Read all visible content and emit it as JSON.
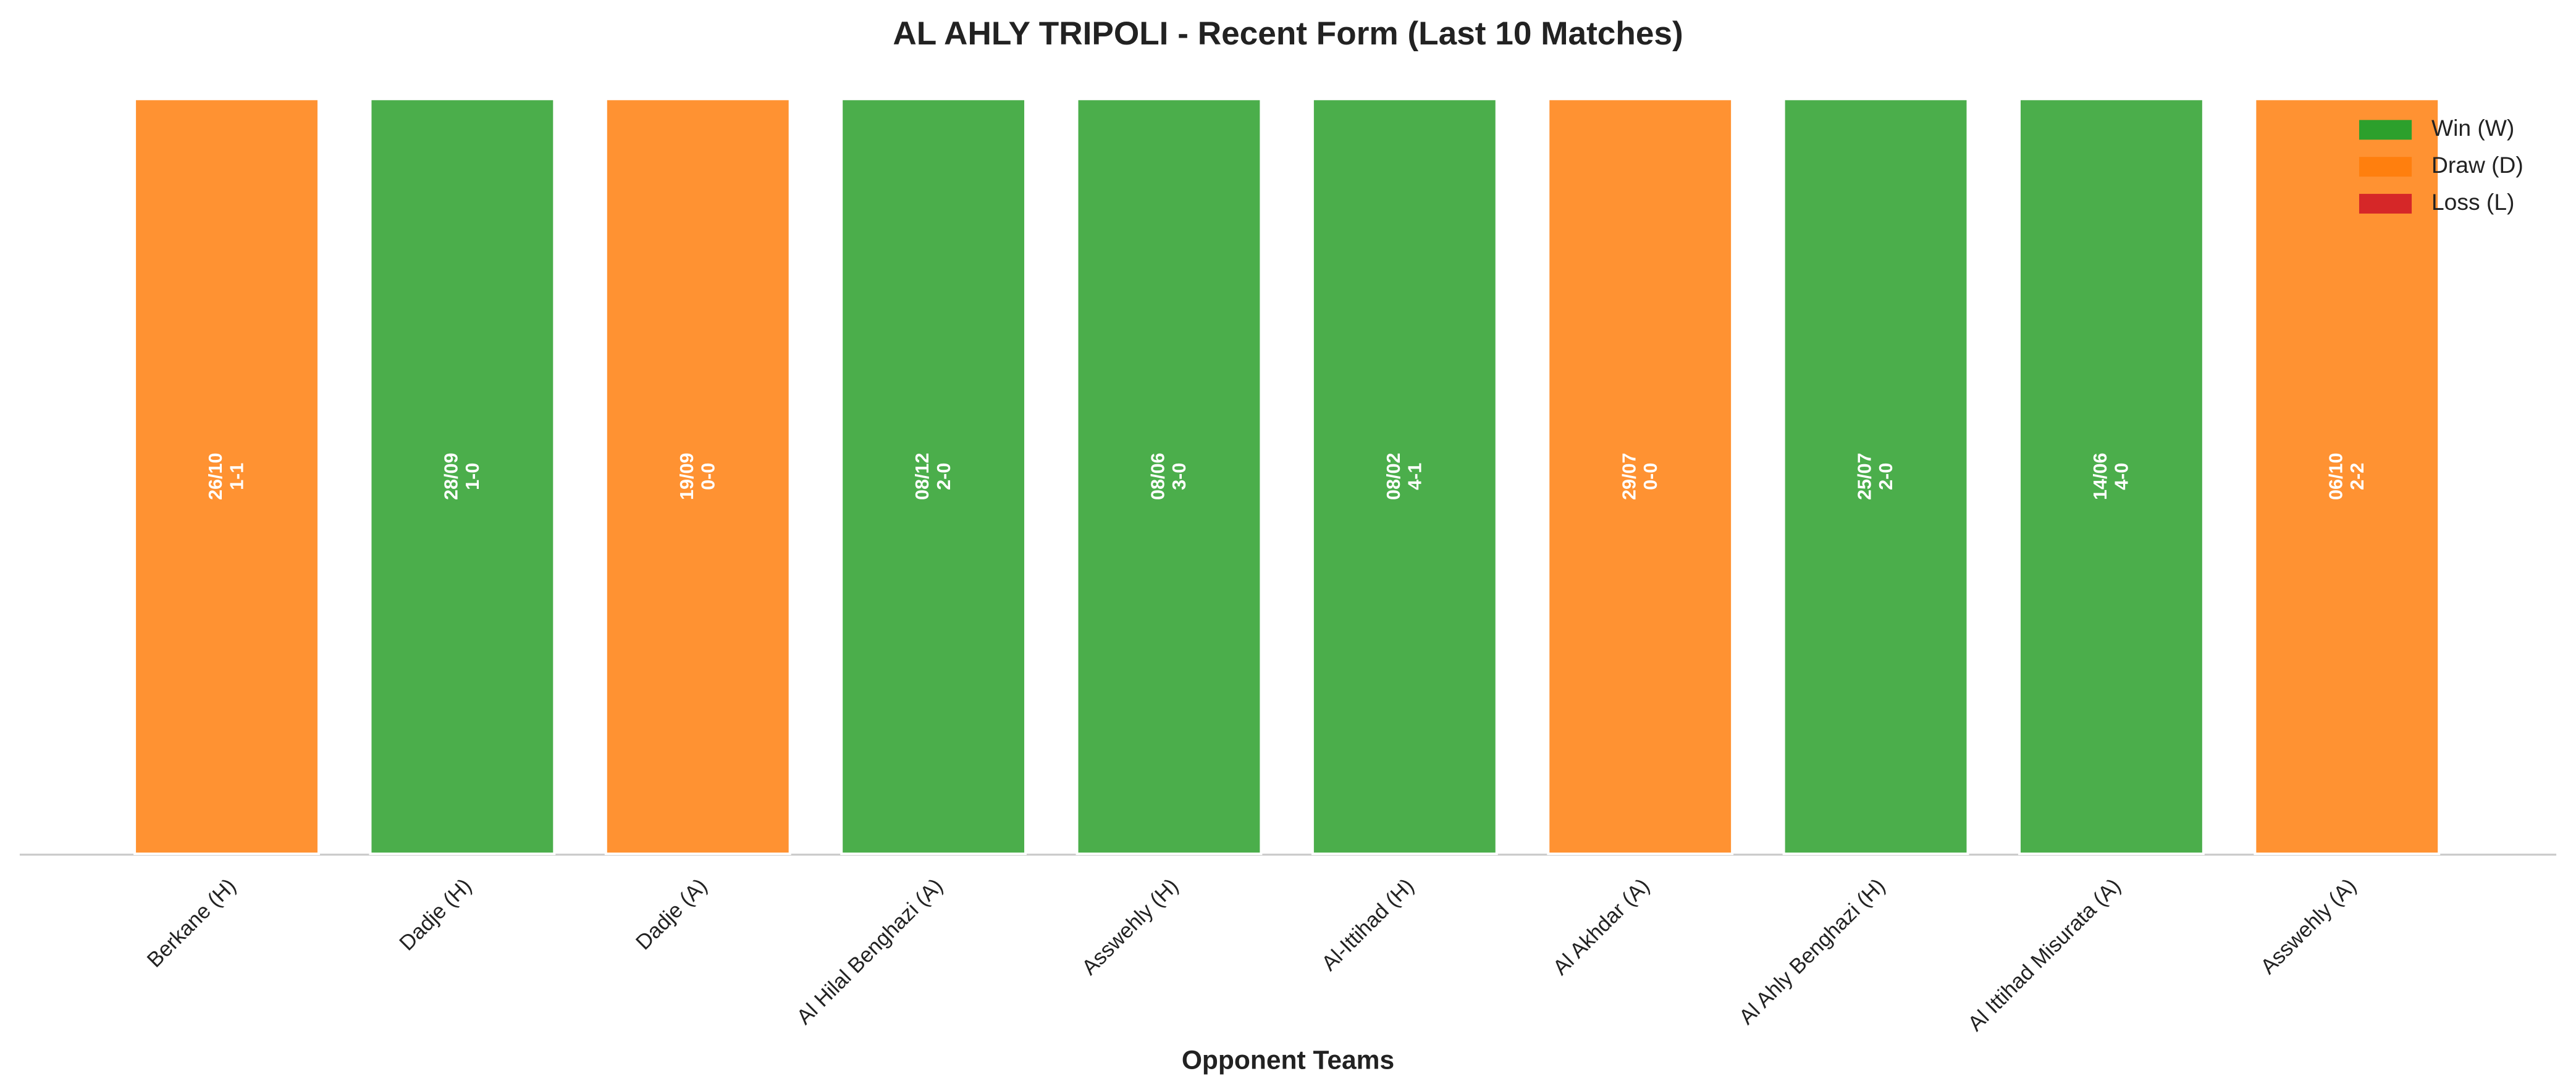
{
  "chart_data": {
    "type": "bar",
    "title": "AL AHLY TRIPOLI - Recent Form (Last 10 Matches)",
    "x_label": "Opponent Teams",
    "categories": [
      "Berkane (H)",
      "Dadje (H)",
      "Dadje (A)",
      "Al Hilal Benghazi (A)",
      "Asswehly (H)",
      "Al-Ittihad (H)",
      "Al Akhdar (A)",
      "Al Ahly Benghazi (H)",
      "Al Ittihad Misurata (A)",
      "Asswehly (A)"
    ],
    "values": [
      1,
      1,
      1,
      1,
      1,
      1,
      1,
      1,
      1,
      1
    ],
    "results": [
      "D",
      "W",
      "D",
      "W",
      "W",
      "W",
      "D",
      "W",
      "W",
      "D"
    ],
    "dates": [
      "26/10",
      "28/09",
      "19/09",
      "08/12",
      "08/06",
      "08/02",
      "29/07",
      "25/07",
      "14/06",
      "06/10"
    ],
    "scores": [
      "1-1",
      "1-0",
      "0-0",
      "2-0",
      "3-0",
      "4-1",
      "0-0",
      "2-0",
      "4-0",
      "2-2"
    ],
    "ylim": [
      0,
      1.05
    ],
    "legend": {
      "position": "upper right",
      "items": [
        {
          "key": "W",
          "name": "Win (W)",
          "color": "#2ca02c"
        },
        {
          "key": "D",
          "name": "Draw (D)",
          "color": "#ff7f0e"
        },
        {
          "key": "L",
          "name": "Loss (L)",
          "color": "#d62728"
        }
      ]
    }
  }
}
